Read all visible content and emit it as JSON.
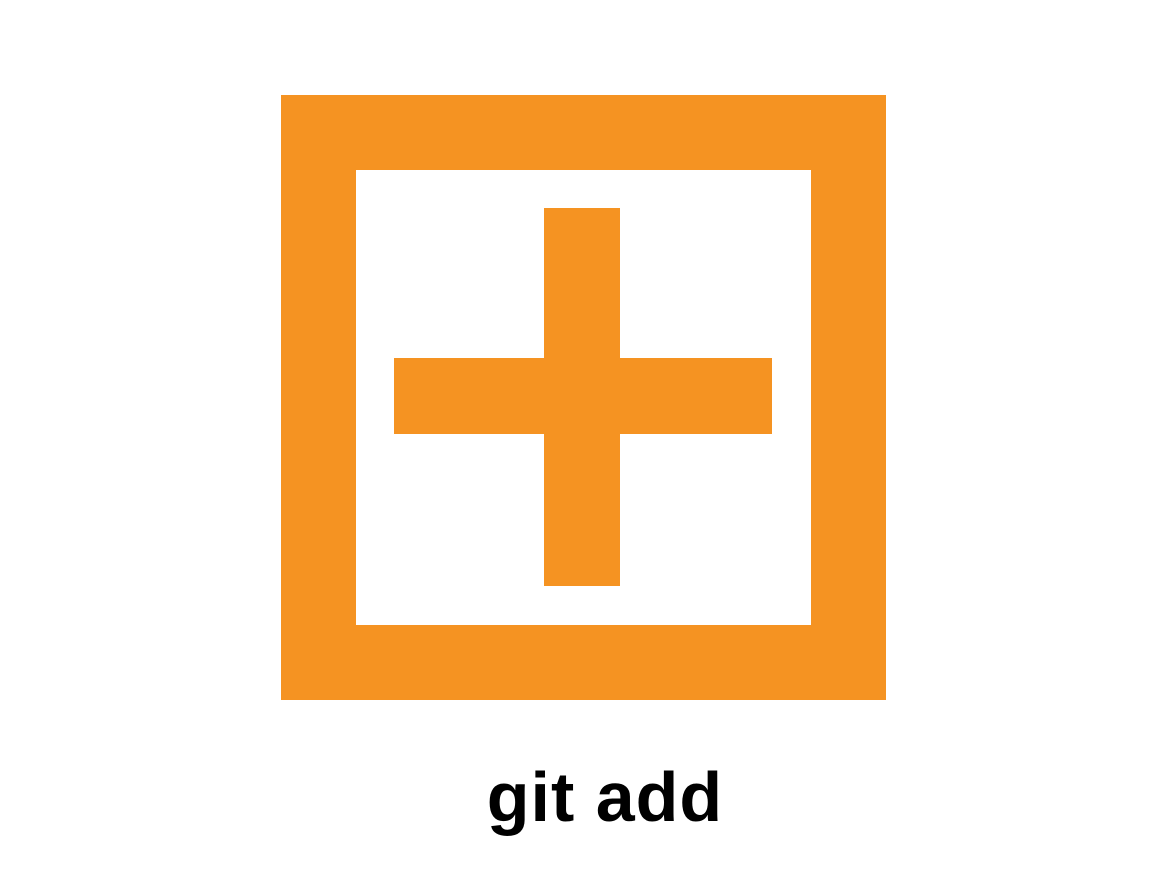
{
  "icon": {
    "name": "add-icon",
    "color": "#F59322",
    "background": "#FFFFFF"
  },
  "caption": {
    "text": "git add",
    "color": "#000000"
  }
}
